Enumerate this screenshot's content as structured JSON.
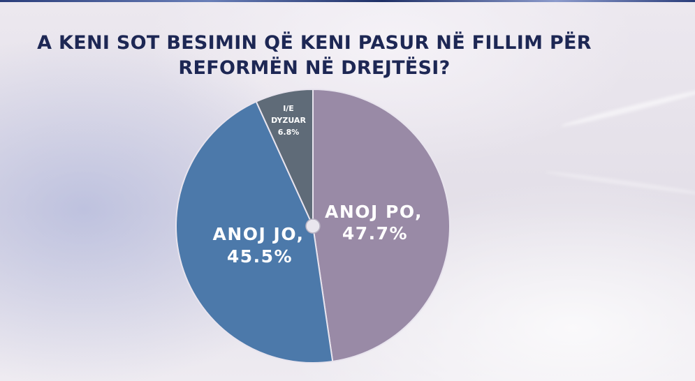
{
  "title": {
    "line1": "A KENI SOT BESIMIN QË KENI PASUR NË FILLIM PËR",
    "line2": "REFORMËN NË DREJTËSI?"
  },
  "colors": {
    "po": "#998aa6",
    "jo": "#4c79aa",
    "dyzuar": "#5f6b78",
    "title": "#1d2754",
    "edge": "#e8e4ee"
  },
  "chart_data": {
    "type": "pie",
    "title": "A KENI SOT BESIMIN QË KENI PASUR NË FILLIM PËR REFORMËN NË DREJTËSI?",
    "slices": [
      {
        "label": "ANOJ PO,",
        "value": 47.7,
        "value_label": "47.7%"
      },
      {
        "label": "ANOJ JO,",
        "value": 45.5,
        "value_label": "45.5%"
      },
      {
        "label": "I/E DYZUAR",
        "label_lines": [
          "I/E",
          "DYZUAR"
        ],
        "value": 6.8,
        "value_label": "6.8%"
      }
    ],
    "start": "12 o'clock",
    "direction": "clockwise",
    "legend": "none"
  }
}
